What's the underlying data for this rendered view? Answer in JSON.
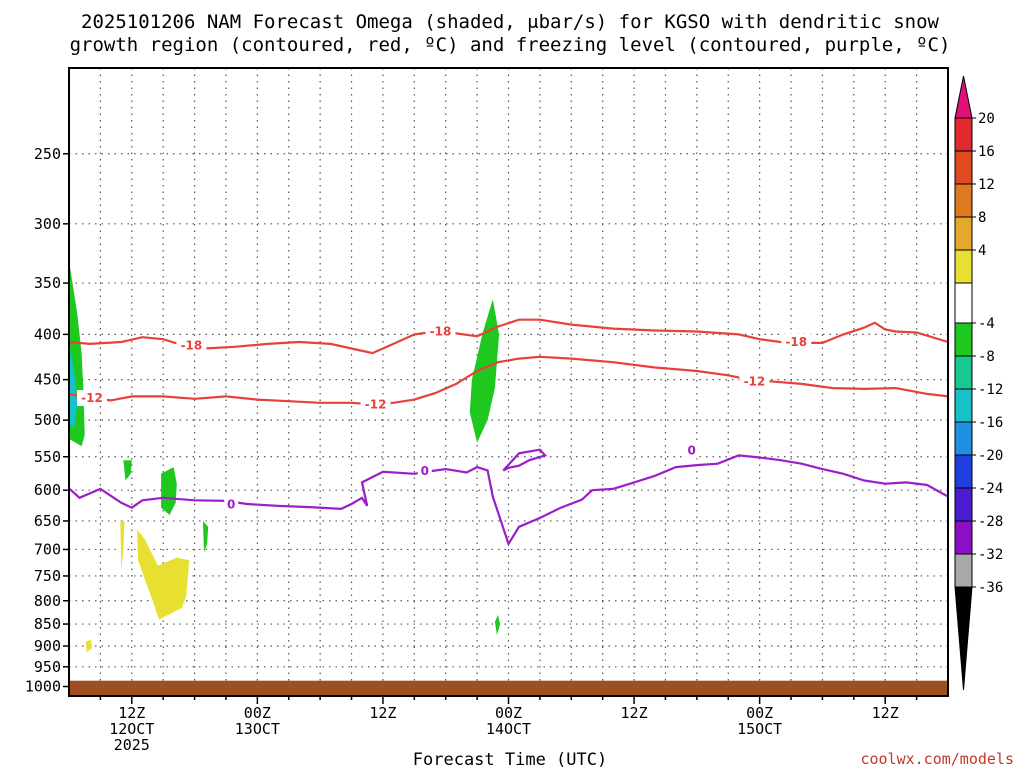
{
  "title_line1": "2025101206 NAM Forecast Omega (shaded, μbar/s) for KGSO with dendritic snow",
  "title_line2": "growth region (contoured, red, ºC) and freezing level (contoured, purple, ºC)",
  "credit": "coolwx.com/models",
  "chart_data": {
    "type": "time-height cross section",
    "xlabel": "Forecast Time (UTC)",
    "x_ticks": [
      {
        "hour": 6,
        "line1": "12Z",
        "line2": "12OCT",
        "line3": "2025"
      },
      {
        "hour": 18,
        "line1": "00Z",
        "line2": "13OCT",
        "line3": ""
      },
      {
        "hour": 30,
        "line1": "12Z",
        "line2": "",
        "line3": ""
      },
      {
        "hour": 42,
        "line1": "00Z",
        "line2": "14OCT",
        "line3": ""
      },
      {
        "hour": 54,
        "line1": "12Z",
        "line2": "",
        "line3": ""
      },
      {
        "hour": 66,
        "line1": "00Z",
        "line2": "15OCT",
        "line3": ""
      },
      {
        "hour": 78,
        "line1": "12Z",
        "line2": "",
        "line3": ""
      }
    ],
    "xlim_hours": [
      0,
      84
    ],
    "y_ticks_hPa": [
      250,
      300,
      350,
      400,
      450,
      500,
      550,
      600,
      650,
      700,
      750,
      800,
      850,
      900,
      950,
      1000
    ],
    "ylim_hPa": [
      1025,
      200
    ],
    "y_scale": "log-pressure",
    "grid": true,
    "colorbar": {
      "levels": [
        20,
        16,
        12,
        8,
        4,
        -4,
        -8,
        -12,
        -16,
        -20,
        -24,
        -28,
        -32,
        -36
      ],
      "colors": [
        "#e8e030",
        "#e4a82a",
        "#e07a22",
        "#e04a1e",
        "#e02a30",
        "#ffffff",
        "#1ec81e",
        "#18c890",
        "#18c0c8",
        "#2090e0",
        "#1f3ee0",
        "#4a1ed0",
        "#8a10c8",
        "#a8a8a8"
      ],
      "top_arrow_color": "#e0107a",
      "bottom_arrow_color": "#000000"
    },
    "dgz_contour_color": "#e8403a",
    "dgz_contours": [
      {
        "level": "-18",
        "points": [
          [
            0,
            408
          ],
          [
            2,
            410
          ],
          [
            5,
            408
          ],
          [
            7,
            403
          ],
          [
            9,
            405
          ],
          [
            11,
            412
          ],
          [
            13,
            415
          ],
          [
            16,
            413
          ],
          [
            19,
            410
          ],
          [
            22,
            408
          ],
          [
            25,
            410
          ],
          [
            27,
            415
          ],
          [
            29,
            420
          ],
          [
            31,
            410
          ],
          [
            33,
            400
          ],
          [
            35,
            397
          ],
          [
            37,
            399
          ],
          [
            39,
            402
          ],
          [
            41,
            392
          ],
          [
            43,
            385
          ],
          [
            45,
            385
          ],
          [
            48,
            390
          ],
          [
            52,
            394
          ],
          [
            56,
            396
          ],
          [
            60,
            397
          ],
          [
            64,
            400
          ],
          [
            66,
            405
          ],
          [
            68,
            408
          ],
          [
            70,
            409
          ],
          [
            72,
            409
          ],
          [
            74,
            400
          ],
          [
            76,
            393
          ],
          [
            77,
            388
          ],
          [
            78,
            395
          ],
          [
            79,
            397
          ],
          [
            81,
            398
          ],
          [
            84,
            408
          ]
        ],
        "labels": [
          {
            "hour": 11.7,
            "hPa": 412
          },
          {
            "hour": 35.5,
            "hPa": 397
          },
          {
            "hour": 69.5,
            "hPa": 408
          }
        ]
      },
      {
        "level": "-12",
        "points": [
          [
            0,
            467
          ],
          [
            2,
            472
          ],
          [
            4,
            475
          ],
          [
            6,
            470
          ],
          [
            9,
            470
          ],
          [
            12,
            473
          ],
          [
            15,
            470
          ],
          [
            18,
            474
          ],
          [
            21,
            476
          ],
          [
            24,
            478
          ],
          [
            27,
            478
          ],
          [
            29,
            480
          ],
          [
            31,
            478
          ],
          [
            33,
            474
          ],
          [
            35,
            466
          ],
          [
            37,
            455
          ],
          [
            39,
            440
          ],
          [
            41,
            430
          ],
          [
            43,
            426
          ],
          [
            45,
            424
          ],
          [
            48,
            426
          ],
          [
            52,
            430
          ],
          [
            56,
            436
          ],
          [
            60,
            440
          ],
          [
            63,
            445
          ],
          [
            65,
            450
          ],
          [
            67,
            452
          ],
          [
            70,
            455
          ],
          [
            73,
            460
          ],
          [
            76,
            461
          ],
          [
            79,
            460
          ],
          [
            82,
            467
          ],
          [
            84,
            470
          ]
        ],
        "labels": [
          {
            "hour": 2.2,
            "hPa": 472
          },
          {
            "hour": 29.3,
            "hPa": 480
          },
          {
            "hour": 65.5,
            "hPa": 452
          }
        ]
      }
    ],
    "freezing_contour_color": "#9c1ec8",
    "freezing_level": {
      "level": "0",
      "points": [
        [
          0,
          597
        ],
        [
          1,
          612
        ],
        [
          3,
          598
        ],
        [
          5,
          620
        ],
        [
          6,
          628
        ],
        [
          7,
          616
        ],
        [
          9,
          612
        ],
        [
          12,
          616
        ],
        [
          15,
          617
        ],
        [
          17,
          622
        ],
        [
          20,
          625
        ],
        [
          23,
          627
        ],
        [
          26,
          630
        ],
        [
          27,
          622
        ],
        [
          28,
          612
        ],
        [
          28.5,
          625
        ],
        [
          28,
          588
        ],
        [
          30,
          572
        ],
        [
          33,
          575
        ],
        [
          35,
          570
        ],
        [
          36,
          568
        ],
        [
          38,
          573
        ],
        [
          39,
          565
        ],
        [
          40,
          570
        ],
        [
          40.5,
          610
        ],
        [
          42,
          690
        ],
        [
          43,
          660
        ],
        [
          45,
          645
        ],
        [
          47,
          628
        ],
        [
          49,
          615
        ],
        [
          50,
          600
        ],
        [
          52,
          598
        ],
        [
          54,
          588
        ],
        [
          56,
          578
        ],
        [
          58,
          565
        ],
        [
          60,
          562
        ],
        [
          62,
          560
        ],
        [
          64,
          548
        ],
        [
          66,
          551
        ],
        [
          68,
          555
        ],
        [
          70,
          560
        ],
        [
          72,
          568
        ],
        [
          74,
          575
        ],
        [
          76,
          585
        ],
        [
          78,
          590
        ],
        [
          80,
          588
        ],
        [
          82,
          592
        ],
        [
          84,
          610
        ]
      ],
      "loop": [
        [
          41.5,
          570
        ],
        [
          43,
          545
        ],
        [
          45,
          540
        ],
        [
          45.5,
          548
        ],
        [
          44,
          555
        ],
        [
          43,
          563
        ],
        [
          42,
          566
        ],
        [
          41.5,
          570
        ]
      ],
      "labels": [
        {
          "hour": 15.5,
          "hPa": 623
        },
        {
          "hour": 34,
          "hPa": 571
        },
        {
          "hour": 59.5,
          "hPa": 541
        }
      ]
    },
    "omega_regions": [
      {
        "sign": "negative",
        "color": "#1ec81e",
        "points": [
          [
            0,
            330
          ],
          [
            0.8,
            380
          ],
          [
            1.2,
            420
          ],
          [
            1.4,
            470
          ],
          [
            1.5,
            520
          ],
          [
            1.2,
            535
          ],
          [
            0.6,
            530
          ],
          [
            0,
            525
          ]
        ]
      },
      {
        "sign": "negative",
        "color": "#18c0c8",
        "points": [
          [
            0,
            410
          ],
          [
            0.5,
            440
          ],
          [
            0.8,
            480
          ],
          [
            0.5,
            510
          ],
          [
            0,
            505
          ]
        ]
      },
      {
        "sign": "negative",
        "color": "#1ec81e",
        "points": [
          [
            5.2,
            555
          ],
          [
            6,
            555
          ],
          [
            5.9,
            575
          ],
          [
            5.4,
            585
          ]
        ]
      },
      {
        "sign": "negative",
        "color": "#1ec81e",
        "points": [
          [
            8.8,
            575
          ],
          [
            10,
            565
          ],
          [
            10.3,
            590
          ],
          [
            10.2,
            620
          ],
          [
            9.6,
            640
          ],
          [
            8.8,
            628
          ]
        ]
      },
      {
        "sign": "negative",
        "color": "#1ec81e",
        "points": [
          [
            12.8,
            650
          ],
          [
            13.3,
            660
          ],
          [
            13.2,
            690
          ],
          [
            12.9,
            705
          ]
        ]
      },
      {
        "sign": "negative",
        "color": "#1ec81e",
        "points": [
          [
            38.5,
            450
          ],
          [
            39.5,
            400
          ],
          [
            40.5,
            365
          ],
          [
            41.1,
            400
          ],
          [
            40.7,
            460
          ],
          [
            40,
            500
          ],
          [
            39,
            530
          ],
          [
            38.3,
            490
          ]
        ]
      },
      {
        "sign": "negative",
        "color": "#1ec81e",
        "points": [
          [
            40.7,
            845
          ],
          [
            41,
            830
          ],
          [
            41.2,
            850
          ],
          [
            40.9,
            875
          ]
        ]
      },
      {
        "sign": "positive",
        "color": "#e8e030",
        "points": [
          [
            4.9,
            650
          ],
          [
            5.3,
            650
          ],
          [
            5.2,
            700
          ],
          [
            5,
            740
          ]
        ]
      },
      {
        "sign": "positive",
        "color": "#e8e030",
        "points": [
          [
            6.5,
            665
          ],
          [
            7.2,
            680
          ],
          [
            8.5,
            730
          ],
          [
            10.3,
            715
          ],
          [
            11.5,
            720
          ],
          [
            11.2,
            790
          ],
          [
            10.8,
            815
          ],
          [
            8.6,
            840
          ],
          [
            8,
            800
          ],
          [
            7.3,
            760
          ],
          [
            6.6,
            720
          ]
        ]
      },
      {
        "sign": "positive",
        "color": "#e8e030",
        "points": [
          [
            1.6,
            890
          ],
          [
            2.1,
            885
          ],
          [
            2.2,
            905
          ],
          [
            1.7,
            915
          ]
        ]
      }
    ],
    "terrain": {
      "color": "#9e4f22",
      "surface_hPa": 985
    }
  }
}
